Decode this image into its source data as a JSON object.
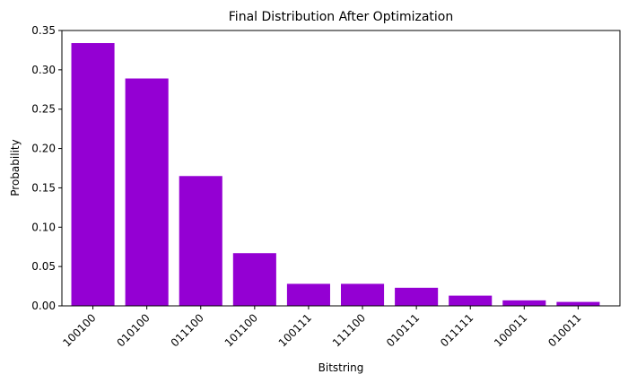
{
  "chart_data": {
    "type": "bar",
    "title": "Final Distribution After Optimization",
    "xlabel": "Bitstring",
    "ylabel": "Probability",
    "categories": [
      "100100",
      "010100",
      "011100",
      "101100",
      "100111",
      "111100",
      "010111",
      "011111",
      "100011",
      "010011"
    ],
    "values": [
      0.334,
      0.289,
      0.165,
      0.067,
      0.028,
      0.028,
      0.023,
      0.013,
      0.007,
      0.005
    ],
    "ylim": [
      0,
      0.35
    ],
    "yticks": [
      "0.00",
      "0.05",
      "0.10",
      "0.15",
      "0.20",
      "0.25",
      "0.30",
      "0.35"
    ],
    "bar_color": "#9400d3",
    "grid": false,
    "xtick_rotation": "45°"
  }
}
